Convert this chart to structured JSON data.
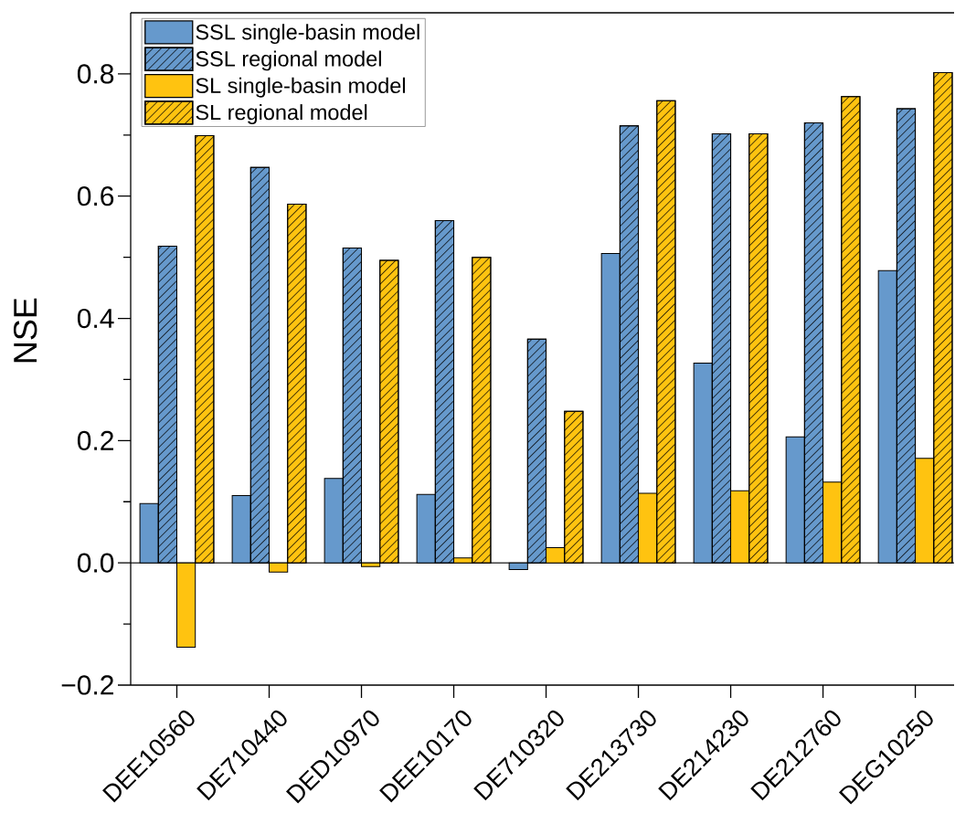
{
  "chart_data": {
    "type": "bar",
    "ylabel": "NSE",
    "categories": [
      "DEE10560",
      "DE710440",
      "DED10970",
      "DEE10170",
      "DE710320",
      "DE213730",
      "DE214230",
      "DE212760",
      "DEG10250"
    ],
    "series": [
      {
        "name": "SSL single-basin model",
        "color": "#6699cc",
        "values": [
          0.097,
          0.11,
          0.138,
          0.112,
          -0.011,
          0.506,
          0.327,
          0.206,
          0.478
        ]
      },
      {
        "name": "SSL regional model",
        "color": "#6699cc",
        "values": [
          0.518,
          0.647,
          0.515,
          0.56,
          0.366,
          0.715,
          0.702,
          0.72,
          0.743
        ]
      },
      {
        "name": "SL single-basin model",
        "color": "#ffc310",
        "values": [
          -0.138,
          -0.015,
          -0.006,
          0.008,
          0.025,
          0.114,
          0.118,
          0.132,
          0.171
        ]
      },
      {
        "name": "SL regional model",
        "color": "#ffc310",
        "values": [
          0.699,
          0.587,
          0.495,
          0.5,
          0.248,
          0.756,
          0.702,
          0.763,
          0.802
        ]
      }
    ],
    "ylim": [
      -0.2,
      0.9
    ],
    "yticks": [
      {
        "value": -0.2,
        "label": "−0.2"
      },
      {
        "value": -0.1,
        "label": null
      },
      {
        "value": 0,
        "label": "0.0"
      },
      {
        "value": 0.1,
        "label": null
      },
      0.2,
      {
        "value": 0.3,
        "label": null
      },
      0.4,
      {
        "value": 0.5,
        "label": null
      },
      0.6,
      {
        "value": 0.7,
        "label": null
      },
      0.8
    ],
    "ref_lines": [
      {
        "axis": "y",
        "value": 0
      }
    ],
    "legend": "top left"
  }
}
